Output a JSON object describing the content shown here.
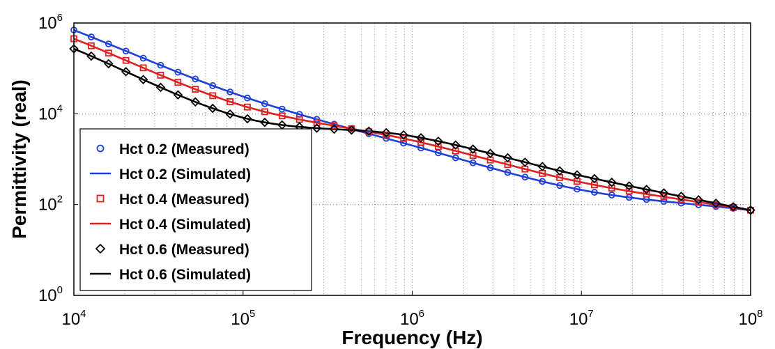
{
  "chart_data": {
    "type": "line",
    "xlabel": "Frequency (Hz)",
    "ylabel": "Permittivity (real)",
    "xscale": "log",
    "yscale": "log",
    "xlim": [
      10000,
      100000000
    ],
    "ylim": [
      1,
      1000000
    ],
    "grid": "on (major and minor, dotted)",
    "legend_placement": "bottom-left",
    "x_ticks": [
      {
        "base": "10",
        "exp": "4"
      },
      {
        "base": "10",
        "exp": "5"
      },
      {
        "base": "10",
        "exp": "6"
      },
      {
        "base": "10",
        "exp": "7"
      },
      {
        "base": "10",
        "exp": "8"
      }
    ],
    "y_ticks": [
      {
        "base": "10",
        "exp": "0"
      },
      {
        "base": "10",
        "exp": "2"
      },
      {
        "base": "10",
        "exp": "4"
      },
      {
        "base": "10",
        "exp": "6"
      }
    ],
    "series": [
      {
        "name": "Hct 0.2 (Measured)",
        "style": "markers",
        "marker": "circle",
        "color": "#1f3fd9",
        "x": [
          10000,
          100000,
          1000000,
          10000000,
          100000000
        ],
        "y": [
          700000,
          24000,
          2000,
          210,
          75
        ]
      },
      {
        "name": "Hct 0.2 (Simulated)",
        "style": "line",
        "color": "#1f3fd9",
        "x": [
          10000,
          100000,
          1000000,
          10000000,
          100000000
        ],
        "y": [
          700000,
          24000,
          2000,
          210,
          75
        ]
      },
      {
        "name": "Hct 0.4 (Measured)",
        "style": "markers",
        "marker": "square",
        "color": "#e02020",
        "x": [
          10000,
          100000,
          1000000,
          10000000,
          100000000
        ],
        "y": [
          450000,
          15000,
          2600,
          310,
          75
        ]
      },
      {
        "name": "Hct 0.4 (Simulated)",
        "style": "line",
        "color": "#e02020",
        "x": [
          10000,
          100000,
          1000000,
          10000000,
          100000000
        ],
        "y": [
          450000,
          15000,
          2600,
          310,
          75
        ]
      },
      {
        "name": "Hct 0.6 (Measured)",
        "style": "markers",
        "marker": "diamond",
        "color": "#000000",
        "x": [
          10000,
          100000,
          1000000,
          10000000,
          100000000
        ],
        "y": [
          270000,
          8200,
          3200,
          430,
          75
        ]
      },
      {
        "name": "Hct 0.6 (Simulated)",
        "style": "line",
        "color": "#000000",
        "x": [
          10000,
          100000,
          1000000,
          10000000,
          100000000
        ],
        "y": [
          270000,
          8200,
          3200,
          430,
          75
        ]
      }
    ]
  }
}
